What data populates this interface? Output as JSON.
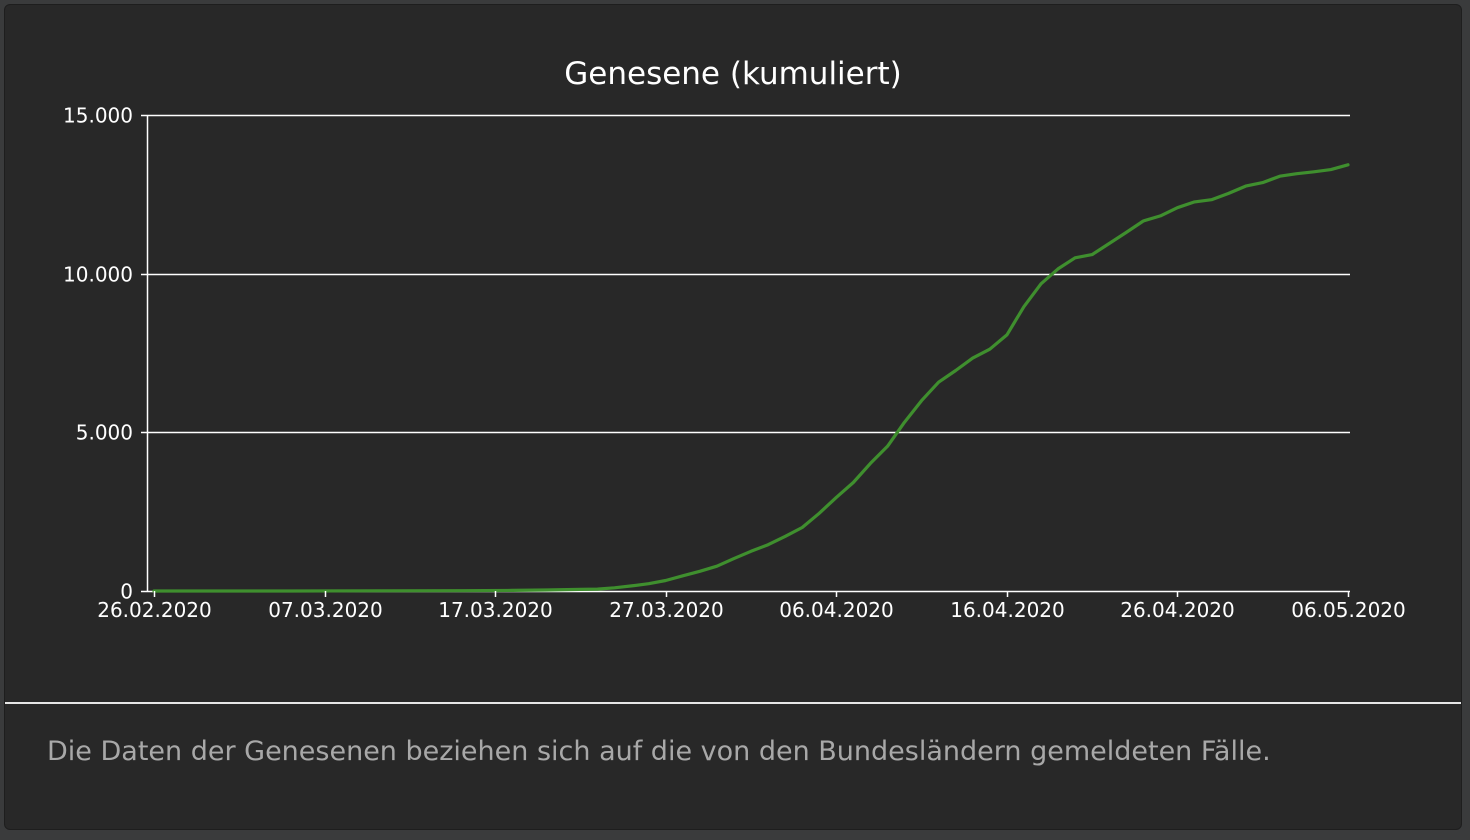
{
  "card": {
    "footer_note": "Die Daten der Genesenen beziehen sich auf die von den Bundesländern gemeldeten Fälle."
  },
  "chart_data": {
    "type": "line",
    "title": "Genesene (kumuliert)",
    "xlabel": "",
    "ylabel": "",
    "x_range": [
      "2020-02-26",
      "2020-05-06"
    ],
    "xlim": [
      "2020-02-26",
      "2020-05-06"
    ],
    "x_ticks": [
      "2020-02-26",
      "2020-03-07",
      "2020-03-17",
      "2020-03-27",
      "2020-04-06",
      "2020-04-16",
      "2020-04-26",
      "2020-05-06"
    ],
    "x_tick_labels": [
      "26.02.2020",
      "07.03.2020",
      "17.03.2020",
      "27.03.2020",
      "06.04.2020",
      "16.04.2020",
      "26.04.2020",
      "06.05.2020"
    ],
    "ylim": [
      0,
      15000
    ],
    "y_ticks": [
      0,
      5000,
      10000,
      15000
    ],
    "y_tick_labels": [
      "0",
      "5.000",
      "10.000",
      "15.000"
    ],
    "grid": "horizontal",
    "line_color": "#3f8f2e",
    "grid_color": "#ffffff",
    "background": "#282828",
    "series": [
      {
        "x": [
          "2020-02-26",
          "2020-03-01",
          "2020-03-05",
          "2020-03-10",
          "2020-03-15",
          "2020-03-18",
          "2020-03-20",
          "2020-03-22",
          "2020-03-23",
          "2020-03-24",
          "2020-03-25",
          "2020-03-26",
          "2020-03-27",
          "2020-03-28",
          "2020-03-29",
          "2020-03-30",
          "2020-03-31",
          "2020-04-01",
          "2020-04-02",
          "2020-04-03",
          "2020-04-04",
          "2020-04-05",
          "2020-04-06",
          "2020-04-07",
          "2020-04-08",
          "2020-04-09",
          "2020-04-10",
          "2020-04-11",
          "2020-04-12",
          "2020-04-13",
          "2020-04-14",
          "2020-04-15",
          "2020-04-16",
          "2020-04-17",
          "2020-04-18",
          "2020-04-19",
          "2020-04-20",
          "2020-04-21",
          "2020-04-22",
          "2020-04-23",
          "2020-04-24",
          "2020-04-25",
          "2020-04-26",
          "2020-04-27",
          "2020-04-28",
          "2020-04-29",
          "2020-04-30",
          "2020-05-01",
          "2020-05-02",
          "2020-05-03",
          "2020-05-04",
          "2020-05-05",
          "2020-05-06"
        ],
        "values": [
          0,
          0,
          0,
          5,
          10,
          20,
          30,
          50,
          60,
          100,
          160,
          230,
          330,
          480,
          620,
          780,
          1020,
          1250,
          1460,
          1720,
          2000,
          2450,
          2950,
          3420,
          4020,
          4560,
          5320,
          6000,
          6580,
          6950,
          7340,
          7620,
          8070,
          8960,
          9680,
          10150,
          10500,
          10600,
          10950,
          11300,
          11660,
          11820,
          12080,
          12260,
          12330,
          12530,
          12760,
          12870,
          13070,
          13150,
          13210,
          13280,
          13430
        ]
      }
    ]
  }
}
